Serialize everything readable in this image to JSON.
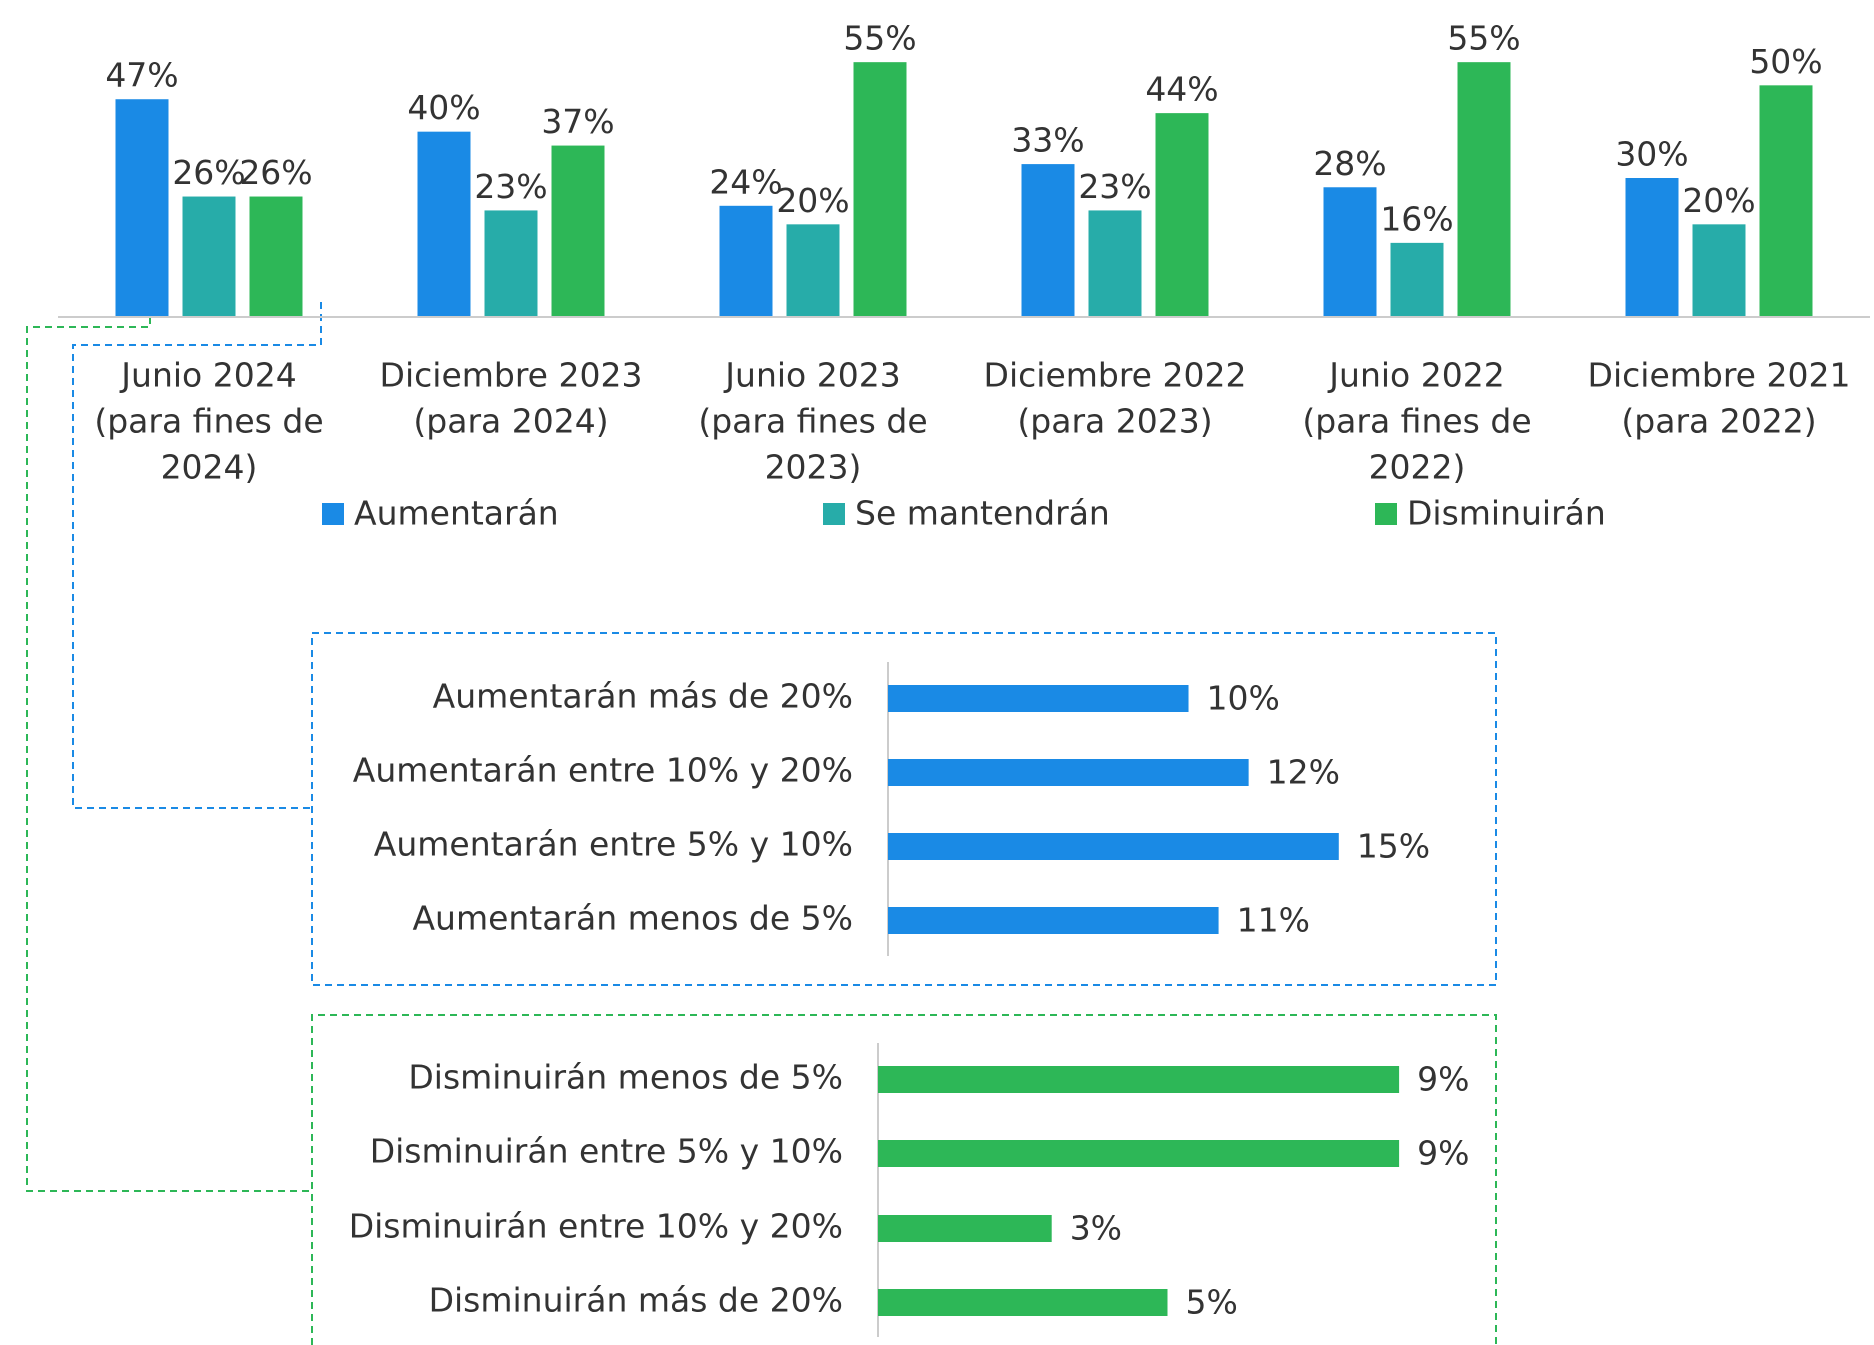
{
  "chart_data": [
    {
      "type": "bar",
      "categories": [
        [
          "Junio 2024",
          "(para fines de",
          "2024)"
        ],
        [
          "Diciembre 2023",
          "(para 2024)"
        ],
        [
          "Junio 2023",
          "(para fines de",
          "2023)"
        ],
        [
          "Diciembre 2022",
          "(para 2023)"
        ],
        [
          "Junio 2022",
          "(para fines de",
          "2022)"
        ],
        [
          "Diciembre 2021",
          "(para 2022)"
        ]
      ],
      "series": [
        {
          "name": "Aumentarán",
          "color": "#1a8ae5",
          "values": [
            47,
            40,
            24,
            33,
            28,
            30
          ],
          "value_labels": [
            "47%",
            "40%",
            "24%",
            "33%",
            "28%",
            "30%"
          ]
        },
        {
          "name": "Se mantendrán",
          "color": "#27aca9",
          "values": [
            26,
            23,
            20,
            23,
            16,
            20
          ],
          "value_labels": [
            "26%",
            "23%",
            "20%",
            "23%",
            "16%",
            "20%"
          ]
        },
        {
          "name": "Disminuirán",
          "color": "#2db757",
          "values": [
            26,
            37,
            55,
            44,
            55,
            50
          ],
          "value_labels": [
            "26%",
            "37%",
            "55%",
            "44%",
            "55%",
            "50%"
          ]
        }
      ],
      "ylim": [
        0,
        60
      ]
    },
    {
      "type": "hbar",
      "categories": [
        "Aumentarán más de 20%",
        "Aumentarán entre 10% y 20%",
        "Aumentarán entre 5% y 10%",
        "Aumentarán menos de 5%"
      ],
      "values": [
        10,
        12,
        15,
        11
      ],
      "value_labels": [
        "10%",
        "12%",
        "15%",
        "11%"
      ],
      "color": "#1a8ae5",
      "xlim": [
        0,
        19
      ]
    },
    {
      "type": "hbar",
      "categories": [
        "Disminuirán menos de 5%",
        "Disminuirán entre 5% y 10%",
        "Disminuirán entre 10% y 20%",
        "Disminuirán más de 20%"
      ],
      "values": [
        9,
        9,
        3,
        5
      ],
      "value_labels": [
        "9%",
        "9%",
        "3%",
        "5%"
      ],
      "color": "#2db757",
      "xlim": [
        0,
        10
      ]
    }
  ]
}
